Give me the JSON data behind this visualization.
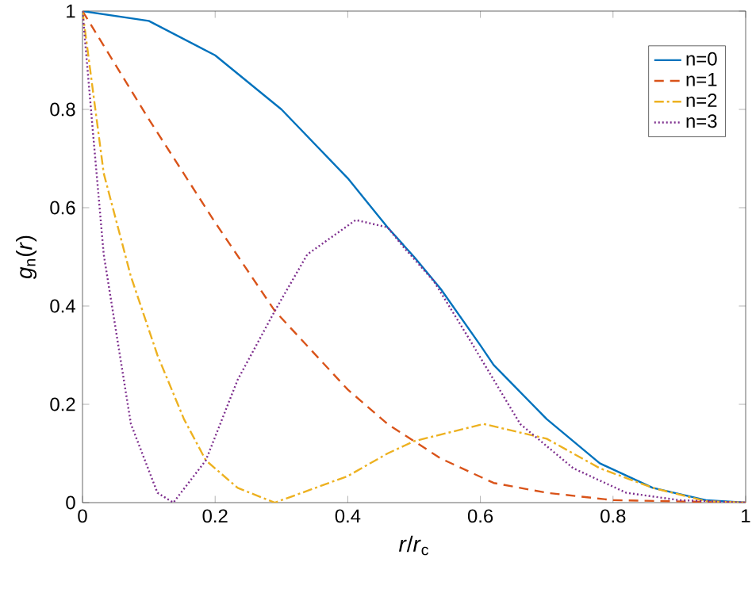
{
  "chart_data": {
    "type": "line",
    "xlabel": "*r*/*r*$_{c}$",
    "ylabel": "*g*$_{n}$(*r*)",
    "xlim": [
      0,
      1
    ],
    "ylim": [
      0,
      1
    ],
    "xticks": [
      0,
      0.2,
      0.4,
      0.6,
      0.8,
      1
    ],
    "yticks": [
      0,
      0.2,
      0.4,
      0.6,
      0.8,
      1
    ],
    "legend": "top right",
    "grid": false,
    "series": [
      {
        "name": "n=0",
        "color": "#0072bd",
        "line_style": "solid",
        "x": [
          0,
          0.1,
          0.2,
          0.3,
          0.4,
          0.46,
          0.5,
          0.54,
          0.6,
          0.62,
          0.7,
          0.78,
          0.86,
          0.94,
          1
        ],
        "values": [
          1,
          0.98,
          0.91,
          0.8,
          0.66,
          0.56,
          0.5,
          0.435,
          0.32,
          0.28,
          0.17,
          0.08,
          0.03,
          0.005,
          0
        ]
      },
      {
        "name": "n=1",
        "color": "#d95319",
        "line_style": "dashed",
        "x": [
          0,
          0.1,
          0.2,
          0.29,
          0.4,
          0.46,
          0.54,
          0.62,
          0.7,
          0.8,
          1
        ],
        "values": [
          1,
          0.78,
          0.57,
          0.39,
          0.23,
          0.16,
          0.09,
          0.04,
          0.02,
          0.005,
          0
        ]
      },
      {
        "name": "n=2",
        "color": "#edb120",
        "line_style": "dashdot",
        "x": [
          0,
          0.032,
          0.073,
          0.113,
          0.153,
          0.186,
          0.234,
          0.29,
          0.4,
          0.46,
          0.5,
          0.605,
          0.7,
          0.78,
          0.86,
          0.94,
          1
        ],
        "values": [
          1,
          0.67,
          0.46,
          0.3,
          0.17,
          0.086,
          0.03,
          0,
          0.054,
          0.1,
          0.125,
          0.16,
          0.13,
          0.07,
          0.03,
          0.003,
          0
        ]
      },
      {
        "name": "n=3",
        "color": "#7e2f8e",
        "line_style": "dotted",
        "x": [
          0,
          0.016,
          0.032,
          0.073,
          0.113,
          0.137,
          0.186,
          0.234,
          0.29,
          0.339,
          0.412,
          0.46,
          0.484,
          0.53,
          0.58,
          0.66,
          0.74,
          0.82,
          0.9,
          1
        ],
        "values": [
          1,
          0.75,
          0.505,
          0.16,
          0.02,
          0,
          0.086,
          0.25,
          0.39,
          0.505,
          0.575,
          0.56,
          0.52,
          0.45,
          0.34,
          0.16,
          0.07,
          0.02,
          0.005,
          0
        ]
      }
    ]
  }
}
